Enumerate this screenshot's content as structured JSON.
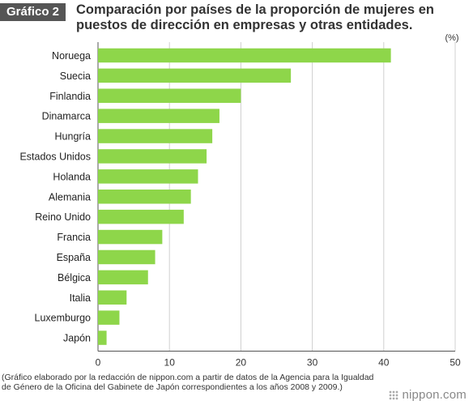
{
  "header": {
    "badge": "Gráfico 2",
    "title": "Comparación por países de la proporción de mujeres en puestos de dirección en empresas y otras entidades."
  },
  "chart_data": {
    "type": "bar",
    "orientation": "horizontal",
    "title": "Comparación por países de la proporción de mujeres en puestos de dirección en empresas y otras entidades.",
    "unit_label": "(%)",
    "categories": [
      "Noruega",
      "Suecia",
      "Finlandia",
      "Dinamarca",
      "Hungría",
      "Estados Unidos",
      "Holanda",
      "Alemania",
      "Reino Unido",
      "Francia",
      "España",
      "Bélgica",
      "Italia",
      "Luxemburgo",
      "Japón"
    ],
    "values": [
      41,
      27,
      20,
      17,
      16,
      15.2,
      14,
      13,
      12,
      9,
      8,
      7,
      4,
      3,
      1.2
    ],
    "xlim": [
      0,
      50
    ],
    "xticks": [
      0,
      10,
      20,
      30,
      40,
      50
    ],
    "grid": true,
    "bar_color": "#8ed64a"
  },
  "footer": {
    "source": "(Gráfico elaborado por la redacción de nippon.com a partir de datos de la Agencia para la Igualdad de Género de la Oficina del Gabinete de Japón correspondientes a los años 2008 y 2009.)",
    "logo_text": "nippon.com"
  }
}
